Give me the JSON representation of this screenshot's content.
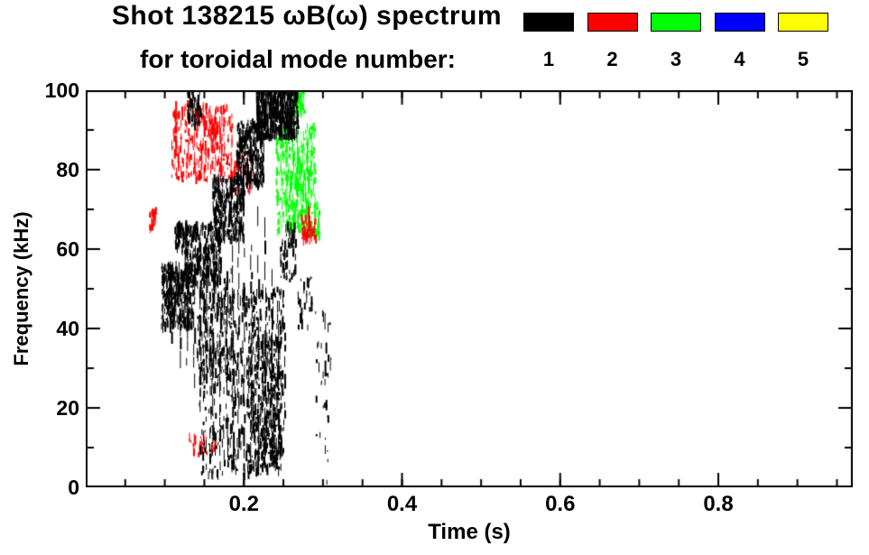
{
  "header": {
    "title": "Shot 138215 ωB(ω) spectrum",
    "subtitle": "for toroidal mode number:"
  },
  "legend": {
    "items": [
      {
        "label": "1",
        "color": "#000000"
      },
      {
        "label": "2",
        "color": "#ff0000"
      },
      {
        "label": "3",
        "color": "#00ff00"
      },
      {
        "label": "4",
        "color": "#0000ff"
      },
      {
        "label": "5",
        "color": "#ffff00"
      }
    ]
  },
  "chart_data": {
    "type": "scatter",
    "title": "Shot 138215 ωB(ω) spectrum",
    "subtitle": "for toroidal mode number:",
    "xlabel": "Time (s)",
    "ylabel": "Frequency (kHz)",
    "xlim": [
      0.0,
      0.97
    ],
    "ylim": [
      0,
      100
    ],
    "xticks": [
      0.2,
      0.4,
      0.6,
      0.8
    ],
    "xtick_labels": [
      "0.2",
      "0.4",
      "0.6",
      "0.8"
    ],
    "yticks": [
      0,
      20,
      40,
      60,
      80,
      100
    ],
    "ytick_labels": [
      "0",
      "20",
      "40",
      "60",
      "80",
      "100"
    ],
    "x_minor_step": 0.05,
    "y_minor_step": 10,
    "grid": false,
    "background": "#ffffff",
    "axis_color": "#000000",
    "legend_position": "top-right-above-plot",
    "cluster_format": "[t_start_s, t_end_s, f_min_kHz, f_max_kHz, n_marks]",
    "streak_format": "[t_s, f_min_kHz, f_max_kHz]",
    "series": [
      {
        "mode": 1,
        "label": "1",
        "color": "#000000",
        "clusters": [
          [
            0.095,
            0.135,
            40,
            56,
            380
          ],
          [
            0.112,
            0.128,
            59,
            66,
            70
          ],
          [
            0.125,
            0.17,
            51,
            66,
            300
          ],
          [
            0.16,
            0.2,
            62,
            78,
            300
          ],
          [
            0.19,
            0.225,
            76,
            92,
            280
          ],
          [
            0.215,
            0.268,
            88,
            100,
            550
          ],
          [
            0.128,
            0.145,
            91,
            100,
            70
          ],
          [
            0.143,
            0.25,
            3,
            50,
            600
          ],
          [
            0.205,
            0.248,
            4,
            38,
            350
          ],
          [
            0.14,
            0.185,
            27,
            55,
            150
          ],
          [
            0.245,
            0.265,
            52,
            66,
            60
          ],
          [
            0.29,
            0.31,
            1,
            45,
            35
          ],
          [
            0.268,
            0.285,
            40,
            55,
            25
          ]
        ],
        "streaks": [
          [
            0.108,
            33,
            50
          ],
          [
            0.118,
            30,
            52
          ],
          [
            0.127,
            28,
            50
          ],
          [
            0.136,
            25,
            52
          ],
          [
            0.144,
            20,
            50
          ],
          [
            0.151,
            25,
            54
          ],
          [
            0.16,
            15,
            50
          ],
          [
            0.169,
            8,
            48
          ],
          [
            0.178,
            5,
            52
          ],
          [
            0.185,
            6,
            57
          ],
          [
            0.192,
            4,
            60
          ],
          [
            0.199,
            6,
            62
          ],
          [
            0.208,
            4,
            65
          ],
          [
            0.217,
            3,
            68
          ],
          [
            0.226,
            5,
            64
          ],
          [
            0.235,
            6,
            56
          ],
          [
            0.242,
            8,
            48
          ],
          [
            0.25,
            10,
            40
          ],
          [
            0.295,
            1,
            6
          ],
          [
            0.302,
            28,
            44
          ]
        ]
      },
      {
        "mode": 2,
        "label": "2",
        "color": "#ff0000",
        "clusters": [
          [
            0.108,
            0.185,
            77,
            96,
            280
          ],
          [
            0.08,
            0.088,
            65,
            70,
            20
          ],
          [
            0.13,
            0.165,
            8,
            13,
            30
          ],
          [
            0.183,
            0.21,
            74,
            84,
            45
          ],
          [
            0.272,
            0.29,
            62,
            68,
            55
          ],
          [
            0.155,
            0.165,
            85,
            93,
            30
          ]
        ],
        "streaks": [
          [
            0.112,
            80,
            95
          ],
          [
            0.12,
            78,
            93
          ],
          [
            0.128,
            82,
            96
          ],
          [
            0.136,
            79,
            94
          ],
          [
            0.148,
            77,
            90
          ],
          [
            0.17,
            76,
            86
          ],
          [
            0.28,
            62,
            68
          ]
        ]
      },
      {
        "mode": 3,
        "label": "3",
        "color": "#00ff00",
        "clusters": [
          [
            0.24,
            0.29,
            64,
            91,
            360
          ],
          [
            0.262,
            0.276,
            94,
            100,
            60
          ],
          [
            0.288,
            0.295,
            63,
            72,
            25
          ]
        ],
        "streaks": [
          [
            0.246,
            66,
            86
          ],
          [
            0.253,
            64,
            84
          ],
          [
            0.26,
            67,
            88
          ],
          [
            0.267,
            65,
            87
          ],
          [
            0.274,
            66,
            82
          ],
          [
            0.281,
            64,
            78
          ]
        ]
      },
      {
        "mode": 4,
        "label": "4",
        "color": "#0000ff",
        "clusters": [],
        "streaks": []
      },
      {
        "mode": 5,
        "label": "5",
        "color": "#ffff00",
        "clusters": [],
        "streaks": []
      }
    ]
  }
}
